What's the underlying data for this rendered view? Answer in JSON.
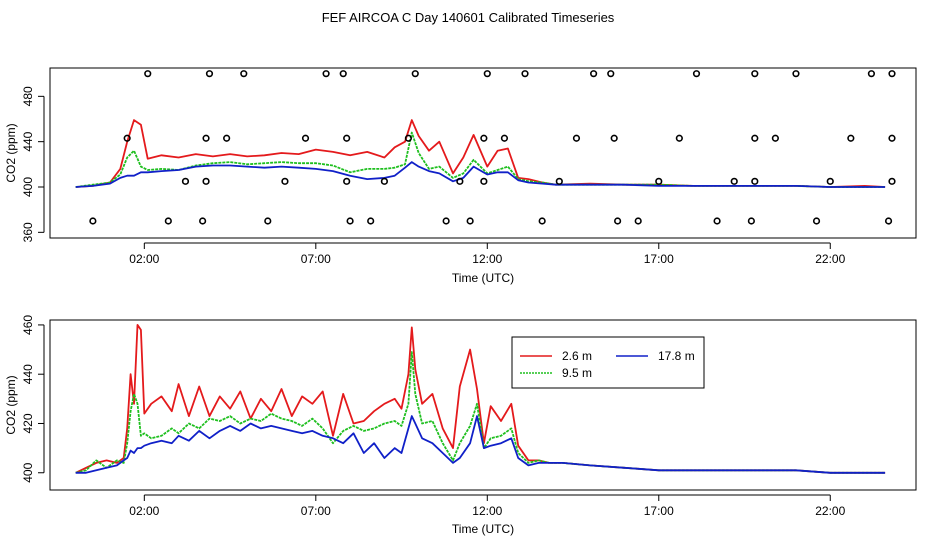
{
  "title": "FEF AIRCOA C  Day 140601  Calibrated Timeseries",
  "colors": {
    "h26": "#e41a1c",
    "h95": "#1fbf1f",
    "h178": "#1020c8"
  },
  "chart_data": [
    {
      "type": "line",
      "xlabel": "Time (UTC)",
      "ylabel": "CO2 (ppm)",
      "xlim": [
        -0.75,
        24.5
      ],
      "ylim": [
        355,
        505
      ],
      "xticks": [
        2,
        7,
        12,
        17,
        22
      ],
      "xtick_labels": [
        "02:00",
        "07:00",
        "12:00",
        "17:00",
        "22:00"
      ],
      "yticks": [
        360,
        400,
        440,
        480
      ],
      "ytick_labels": [
        "360",
        "400",
        "440",
        "480"
      ],
      "series": [
        {
          "name": "2.6 m",
          "color": "#e41a1c",
          "x": [
            0,
            0.5,
            1,
            1.3,
            1.5,
            1.7,
            1.9,
            2.1,
            2.5,
            3,
            3.5,
            4,
            4.5,
            5,
            5.5,
            6,
            6.5,
            7,
            7.5,
            8,
            8.5,
            9,
            9.3,
            9.6,
            9.8,
            10,
            10.3,
            10.6,
            11,
            11.3,
            11.6,
            12,
            12.3,
            12.6,
            12.9,
            13.2,
            13.6,
            14,
            15,
            16,
            17,
            18,
            19,
            20,
            21,
            22,
            23,
            23.6
          ],
          "y": [
            400,
            401,
            404,
            416,
            440,
            459,
            455,
            425,
            428,
            426,
            429,
            427,
            429,
            427,
            428,
            430,
            429,
            433,
            431,
            428,
            431,
            426,
            435,
            440,
            459,
            445,
            432,
            440,
            412,
            426,
            446,
            418,
            432,
            434,
            408,
            407,
            404,
            402,
            403,
            402,
            402,
            401,
            401,
            401,
            401,
            400,
            401,
            400
          ]
        },
        {
          "name": "9.5 m",
          "color": "#1fbf1f",
          "x": [
            0,
            0.5,
            1,
            1.3,
            1.5,
            1.7,
            1.9,
            2.1,
            2.5,
            3,
            3.5,
            4,
            4.5,
            5,
            5.5,
            6,
            6.5,
            7,
            7.5,
            8,
            8.5,
            9,
            9.3,
            9.6,
            9.8,
            10,
            10.3,
            10.6,
            11,
            11.3,
            11.6,
            12,
            12.3,
            12.6,
            12.9,
            13.2,
            13.6,
            14,
            15,
            16,
            17,
            18,
            19,
            20,
            21,
            22,
            23,
            23.6
          ],
          "y": [
            400,
            402,
            404,
            411,
            426,
            432,
            418,
            415,
            416,
            415,
            419,
            421,
            422,
            420,
            421,
            422,
            421,
            421,
            419,
            413,
            416,
            416,
            417,
            420,
            448,
            430,
            416,
            418,
            408,
            412,
            424,
            412,
            415,
            418,
            407,
            405,
            404,
            402,
            402,
            402,
            402,
            401,
            401,
            401,
            401,
            400,
            400,
            400
          ]
        },
        {
          "name": "17.8 m",
          "color": "#1020c8",
          "x": [
            0,
            0.5,
            1,
            1.3,
            1.5,
            1.7,
            1.9,
            2.1,
            2.5,
            3,
            3.5,
            4,
            4.5,
            5,
            5.5,
            6,
            6.5,
            7,
            7.5,
            8,
            8.5,
            9,
            9.3,
            9.6,
            9.8,
            10,
            10.3,
            10.6,
            11,
            11.3,
            11.6,
            12,
            12.3,
            12.6,
            12.9,
            13.2,
            13.6,
            14,
            15,
            16,
            17,
            18,
            19,
            20,
            21,
            22,
            23,
            23.6
          ],
          "y": [
            400,
            401,
            403,
            408,
            410,
            410,
            413,
            413,
            414,
            415,
            418,
            419,
            419,
            418,
            417,
            418,
            417,
            416,
            414,
            410,
            407,
            408,
            410,
            417,
            422,
            418,
            414,
            412,
            405,
            408,
            418,
            411,
            413,
            413,
            406,
            404,
            403,
            402,
            402,
            402,
            401,
            401,
            401,
            401,
            401,
            400,
            400,
            400
          ]
        },
        {
          "name": "markers",
          "style": "points",
          "color": "#000000",
          "x": [
            0.5,
            1.5,
            2.1,
            2.7,
            3.2,
            3.7,
            3.8,
            3.8,
            3.9,
            4.4,
            4.9,
            5.6,
            6.1,
            6.7,
            7.3,
            7.8,
            7.9,
            7.9,
            8.0,
            8.6,
            9.0,
            9.7,
            9.9,
            10.8,
            11.2,
            11.5,
            11.9,
            11.9,
            12.0,
            12.5,
            13.1,
            13.6,
            14.1,
            14.6,
            15.1,
            15.6,
            15.7,
            15.8,
            16.4,
            17.0,
            17.6,
            18.1,
            18.7,
            19.2,
            19.7,
            19.8,
            19.8,
            19.8,
            20.4,
            21.0,
            21.6,
            22.0,
            22.6,
            23.2,
            23.7,
            23.8,
            23.8,
            23.8
          ],
          "y": [
            370,
            443,
            500,
            370,
            405,
            370,
            405,
            443,
            500,
            443,
            500,
            370,
            405,
            443,
            500,
            500,
            443,
            405,
            370,
            370,
            405,
            443,
            500,
            370,
            405,
            370,
            405,
            443,
            500,
            443,
            500,
            370,
            405,
            443,
            500,
            500,
            443,
            370,
            370,
            405,
            443,
            500,
            370,
            405,
            370,
            405,
            443,
            500,
            443,
            500,
            370,
            405,
            443,
            500,
            370,
            405,
            443,
            500
          ]
        }
      ]
    },
    {
      "type": "line",
      "xlabel": "Time (UTC)",
      "ylabel": "CO2 (ppm)",
      "xlim": [
        -0.75,
        24.5
      ],
      "ylim": [
        393,
        462
      ],
      "xticks": [
        2,
        7,
        12,
        17,
        22
      ],
      "xtick_labels": [
        "02:00",
        "07:00",
        "12:00",
        "17:00",
        "22:00"
      ],
      "yticks": [
        400,
        420,
        440,
        460
      ],
      "ytick_labels": [
        "400",
        "420",
        "440",
        "460"
      ],
      "legend": {
        "position": "top-right-center",
        "entries": [
          "2.6 m",
          "17.8 m",
          "9.5 m"
        ]
      },
      "series": [
        {
          "name": "2.6 m",
          "color": "#e41a1c",
          "x": [
            0,
            0.3,
            0.6,
            0.9,
            1.2,
            1.4,
            1.5,
            1.6,
            1.7,
            1.8,
            1.9,
            2.0,
            2.2,
            2.5,
            2.8,
            3.0,
            3.3,
            3.6,
            3.9,
            4.2,
            4.5,
            4.8,
            5.1,
            5.4,
            5.7,
            6.0,
            6.3,
            6.6,
            6.9,
            7.2,
            7.5,
            7.8,
            8.1,
            8.4,
            8.7,
            9.0,
            9.3,
            9.5,
            9.7,
            9.8,
            9.9,
            10.1,
            10.4,
            10.7,
            11.0,
            11.2,
            11.5,
            11.7,
            11.9,
            12.1,
            12.4,
            12.7,
            12.9,
            13.2,
            13.5,
            13.8,
            14.2,
            15,
            16,
            17,
            18,
            19,
            20,
            21,
            22,
            23,
            23.6
          ],
          "y": [
            400,
            402,
            404,
            405,
            404,
            406,
            418,
            440,
            428,
            460,
            458,
            424,
            428,
            431,
            425,
            436,
            423,
            435,
            423,
            431,
            426,
            433,
            422,
            430,
            425,
            434,
            423,
            431,
            428,
            433,
            415,
            432,
            420,
            421,
            425,
            428,
            430,
            426,
            440,
            459,
            442,
            428,
            432,
            418,
            410,
            435,
            450,
            434,
            412,
            427,
            421,
            428,
            411,
            405,
            405,
            404,
            404,
            403,
            402,
            401,
            401,
            401,
            401,
            401,
            400,
            400,
            400
          ]
        },
        {
          "name": "9.5 m",
          "color": "#1fbf1f",
          "x": [
            0,
            0.3,
            0.6,
            0.9,
            1.2,
            1.4,
            1.5,
            1.6,
            1.7,
            1.8,
            1.9,
            2.0,
            2.2,
            2.5,
            2.8,
            3.0,
            3.3,
            3.6,
            3.9,
            4.2,
            4.5,
            4.8,
            5.1,
            5.4,
            5.7,
            6.0,
            6.3,
            6.6,
            6.9,
            7.2,
            7.5,
            7.8,
            8.1,
            8.4,
            8.7,
            9.0,
            9.3,
            9.5,
            9.7,
            9.8,
            9.9,
            10.1,
            10.4,
            10.7,
            11.0,
            11.2,
            11.5,
            11.7,
            11.9,
            12.1,
            12.4,
            12.7,
            12.9,
            13.2,
            13.5,
            13.8,
            14.2,
            15,
            16,
            17,
            18,
            19,
            20,
            21,
            22,
            23,
            23.6
          ],
          "y": [
            400,
            401,
            405,
            402,
            405,
            404,
            412,
            425,
            432,
            428,
            415,
            416,
            414,
            415,
            418,
            416,
            420,
            418,
            422,
            421,
            423,
            420,
            422,
            421,
            424,
            422,
            421,
            419,
            422,
            418,
            412,
            417,
            419,
            417,
            418,
            420,
            421,
            419,
            428,
            449,
            432,
            420,
            421,
            412,
            405,
            412,
            419,
            428,
            410,
            414,
            415,
            418,
            408,
            404,
            405,
            404,
            404,
            403,
            402,
            401,
            401,
            401,
            401,
            401,
            400,
            400,
            400
          ]
        },
        {
          "name": "17.8 m",
          "color": "#1020c8",
          "x": [
            0,
            0.3,
            0.6,
            0.9,
            1.2,
            1.4,
            1.5,
            1.6,
            1.7,
            1.8,
            1.9,
            2.0,
            2.2,
            2.5,
            2.8,
            3.0,
            3.3,
            3.6,
            3.9,
            4.2,
            4.5,
            4.8,
            5.1,
            5.4,
            5.7,
            6.0,
            6.3,
            6.6,
            6.9,
            7.2,
            7.5,
            7.8,
            8.1,
            8.4,
            8.7,
            9.0,
            9.3,
            9.5,
            9.7,
            9.8,
            9.9,
            10.1,
            10.4,
            10.7,
            11.0,
            11.2,
            11.5,
            11.7,
            11.9,
            12.1,
            12.4,
            12.7,
            12.9,
            13.2,
            13.5,
            13.8,
            14.2,
            15,
            16,
            17,
            18,
            19,
            20,
            21,
            22,
            23,
            23.6
          ],
          "y": [
            400,
            400,
            401,
            402,
            403,
            405,
            406,
            409,
            408,
            410,
            410,
            411,
            412,
            413,
            412,
            415,
            413,
            417,
            414,
            417,
            419,
            417,
            420,
            418,
            419,
            418,
            417,
            416,
            417,
            415,
            414,
            412,
            416,
            408,
            412,
            406,
            410,
            408,
            418,
            423,
            420,
            414,
            412,
            408,
            404,
            406,
            412,
            423,
            410,
            411,
            412,
            414,
            406,
            403,
            404,
            404,
            404,
            403,
            402,
            401,
            401,
            401,
            401,
            401,
            400,
            400,
            400
          ]
        }
      ]
    }
  ]
}
